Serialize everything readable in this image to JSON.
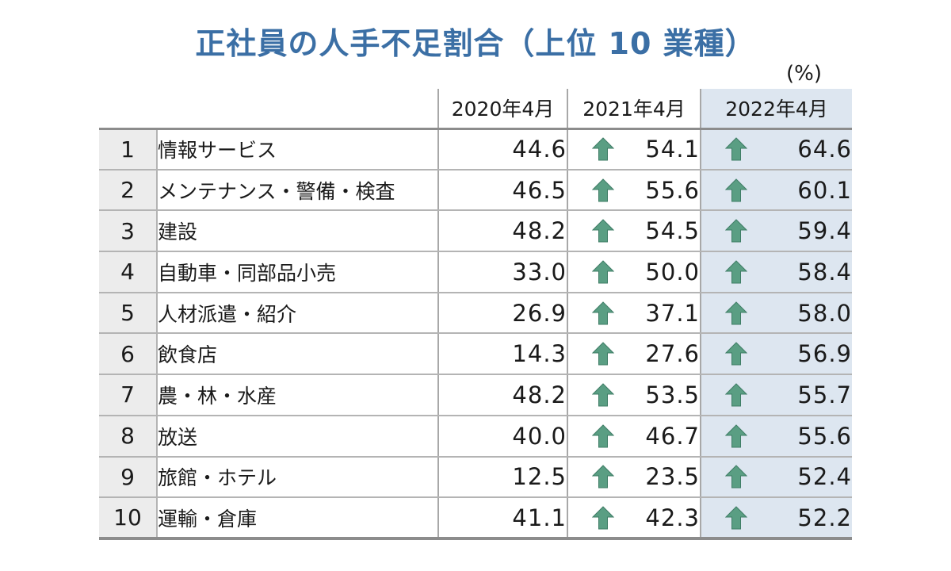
{
  "title": "正社員の人手不足割合（上位 10 業種）",
  "unit": "(%)",
  "chart_data": {
    "type": "table",
    "columns": [
      "",
      "",
      "2020年4月",
      "2021年4月",
      "2022年4月"
    ],
    "rows": [
      {
        "rank": "1",
        "industry": "情報サービス",
        "y2020": "44.6",
        "y2021": "54.1",
        "y2022": "64.6"
      },
      {
        "rank": "2",
        "industry": "メンテナンス・警備・検査",
        "y2020": "46.5",
        "y2021": "55.6",
        "y2022": "60.1"
      },
      {
        "rank": "3",
        "industry": "建設",
        "y2020": "48.2",
        "y2021": "54.5",
        "y2022": "59.4"
      },
      {
        "rank": "4",
        "industry": "自動車・同部品小売",
        "y2020": "33.0",
        "y2021": "50.0",
        "y2022": "58.4"
      },
      {
        "rank": "5",
        "industry": "人材派遣・紹介",
        "y2020": "26.9",
        "y2021": "37.1",
        "y2022": "58.0"
      },
      {
        "rank": "6",
        "industry": "飲食店",
        "y2020": "14.3",
        "y2021": "27.6",
        "y2022": "56.9"
      },
      {
        "rank": "7",
        "industry": "農・林・水産",
        "y2020": "48.2",
        "y2021": "53.5",
        "y2022": "55.7"
      },
      {
        "rank": "8",
        "industry": "放送",
        "y2020": "40.0",
        "y2021": "46.7",
        "y2022": "55.6"
      },
      {
        "rank": "9",
        "industry": "旅館・ホテル",
        "y2020": "12.5",
        "y2021": "23.5",
        "y2022": "52.4"
      },
      {
        "rank": "10",
        "industry": "運輸・倉庫",
        "y2020": "41.1",
        "y2021": "42.3",
        "y2022": "52.2"
      }
    ],
    "trend_icon": "up-arrow-icon",
    "colors": {
      "title": "#3b6fa5",
      "arrow": "#5a9e83",
      "highlight_column": "#dde6f0",
      "rank_column": "#ececec"
    }
  }
}
